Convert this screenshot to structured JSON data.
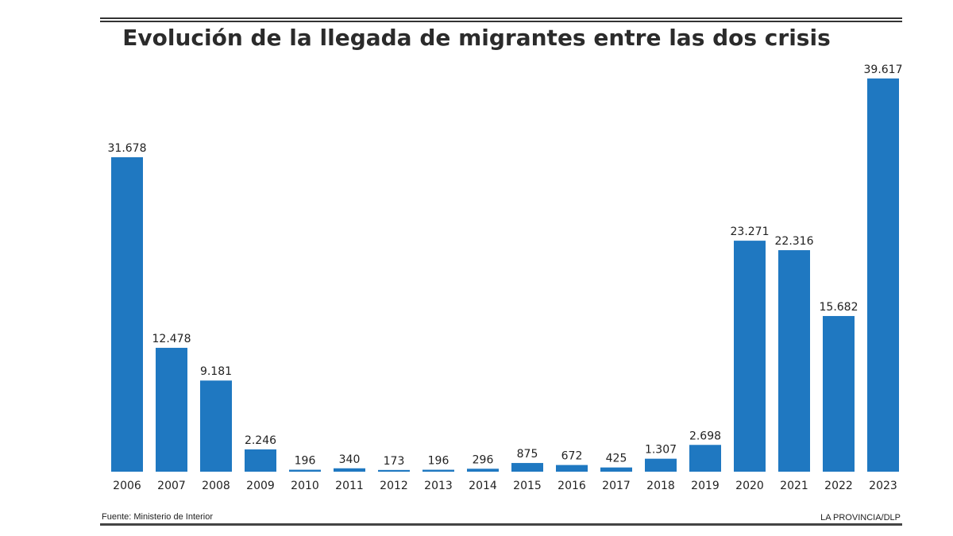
{
  "chart_data": {
    "type": "bar",
    "title": "Evolución de la llegada de migrantes entre las dos crisis",
    "categories": [
      "2006",
      "2007",
      "2008",
      "2009",
      "2010",
      "2011",
      "2012",
      "2013",
      "2014",
      "2015",
      "2016",
      "2017",
      "2018",
      "2019",
      "2020",
      "2021",
      "2022",
      "2023"
    ],
    "values": [
      31678,
      12478,
      9181,
      2246,
      196,
      340,
      173,
      196,
      296,
      875,
      672,
      425,
      1307,
      2698,
      23271,
      22316,
      15682,
      39617
    ],
    "data_labels": [
      "31.678",
      "12.478",
      "9.181",
      "2.246",
      "196",
      "340",
      "173",
      "196",
      "296",
      "875",
      "672",
      "425",
      "1.307",
      "2.698",
      "23.271",
      "22.316",
      "15.682",
      "39.617"
    ],
    "ylim": [
      0,
      40000
    ],
    "grid": false,
    "bar_color": "#1f78c1"
  },
  "footer": {
    "source": "Fuente: Ministerio de Interior",
    "credit": "LA PROVINCIA/DLP"
  }
}
